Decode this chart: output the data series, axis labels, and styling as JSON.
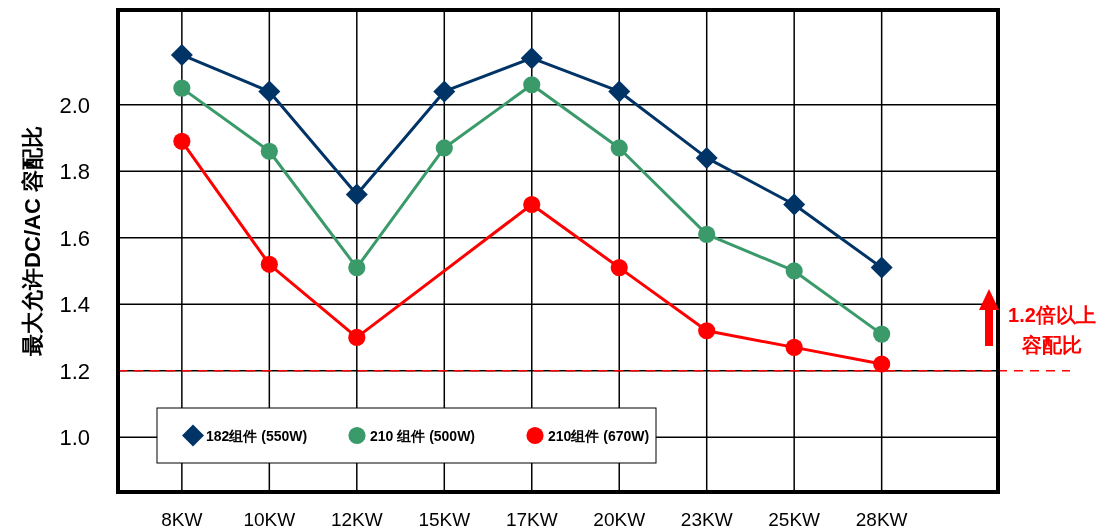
{
  "chart_data": {
    "type": "line",
    "ylabel": "最大允许DC/AC 容配比",
    "categories": [
      "8KW",
      "10KW",
      "12KW",
      "15KW",
      "17KW",
      "20KW",
      "23KW",
      "25KW",
      "28KW"
    ],
    "series": [
      {
        "name": "182组件 (550W)",
        "color": "#003366",
        "marker": "diamond",
        "values": [
          2.15,
          2.04,
          1.73,
          2.04,
          2.14,
          2.04,
          1.84,
          1.7,
          1.51
        ]
      },
      {
        "name": "210 组件 (500W)",
        "color": "#3a9a6a",
        "marker": "circle",
        "values": [
          2.05,
          1.86,
          1.51,
          1.87,
          2.06,
          1.87,
          1.61,
          1.5,
          1.31
        ]
      },
      {
        "name": "210组件 (670W)",
        "color": "#ff0000",
        "marker": "circle",
        "values": [
          1.89,
          1.52,
          1.3,
          null,
          1.7,
          1.51,
          1.32,
          1.27,
          1.22
        ]
      }
    ],
    "ylim": [
      0.835,
      2.285
    ],
    "yticks": [
      {
        "value": 1,
        "label": "1.0"
      },
      1.2,
      1.4,
      1.6,
      1.8,
      {
        "value": 2,
        "label": "2.0"
      }
    ],
    "grid": true,
    "legend": "bottom left",
    "ref_lines": [
      {
        "axis": "y",
        "value": 1.2,
        "color": "#ff0000",
        "line_style": "dashed"
      }
    ],
    "annotations": [
      "1.2倍以上",
      "容配比"
    ]
  }
}
